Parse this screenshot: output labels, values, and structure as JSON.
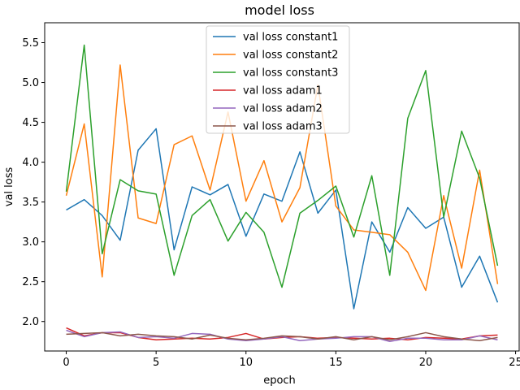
{
  "chart_data": {
    "type": "line",
    "title": "model loss",
    "xlabel": "epoch",
    "ylabel": "val loss",
    "xlim": [
      -1.2,
      25.2
    ],
    "ylim": [
      1.63,
      5.75
    ],
    "xticks": [
      0,
      5,
      10,
      15,
      20,
      25
    ],
    "yticks": [
      2.0,
      2.5,
      3.0,
      3.5,
      4.0,
      4.5,
      5.0,
      5.5
    ],
    "grid": false,
    "legend_position": "upper center",
    "x": [
      0,
      1,
      2,
      3,
      4,
      5,
      6,
      7,
      8,
      9,
      10,
      11,
      12,
      13,
      14,
      15,
      16,
      17,
      18,
      19,
      20,
      21,
      22,
      23,
      24
    ],
    "series": [
      {
        "name": "val loss constant1",
        "color": "#1f77b4",
        "values": [
          3.4,
          3.53,
          3.33,
          3.02,
          4.15,
          4.42,
          2.9,
          3.69,
          3.59,
          3.72,
          3.07,
          3.6,
          3.51,
          4.13,
          3.36,
          3.65,
          2.16,
          3.25,
          2.87,
          3.43,
          3.17,
          3.31,
          2.43,
          2.82,
          2.24
        ]
      },
      {
        "name": "val loss constant2",
        "color": "#ff7f0e",
        "values": [
          3.58,
          4.48,
          2.56,
          5.22,
          3.3,
          3.23,
          4.22,
          4.33,
          3.65,
          4.63,
          3.51,
          4.02,
          3.25,
          3.68,
          4.97,
          3.45,
          3.15,
          3.12,
          3.09,
          2.87,
          2.39,
          3.58,
          2.67,
          3.9,
          2.47
        ]
      },
      {
        "name": "val loss constant3",
        "color": "#2ca02c",
        "values": [
          3.63,
          5.47,
          2.85,
          3.78,
          3.64,
          3.6,
          2.58,
          3.33,
          3.53,
          3.01,
          3.37,
          3.12,
          2.43,
          3.36,
          3.52,
          3.7,
          3.06,
          3.83,
          2.58,
          4.55,
          5.15,
          3.31,
          4.39,
          3.8,
          2.7
        ]
      },
      {
        "name": "val loss adam1",
        "color": "#d62728",
        "values": [
          1.92,
          1.82,
          1.86,
          1.86,
          1.8,
          1.77,
          1.78,
          1.79,
          1.78,
          1.8,
          1.85,
          1.78,
          1.8,
          1.81,
          1.79,
          1.8,
          1.79,
          1.78,
          1.79,
          1.77,
          1.8,
          1.79,
          1.78,
          1.82,
          1.83
        ]
      },
      {
        "name": "val loss adam2",
        "color": "#9467bd",
        "values": [
          1.89,
          1.81,
          1.86,
          1.87,
          1.8,
          1.81,
          1.79,
          1.85,
          1.84,
          1.78,
          1.76,
          1.78,
          1.81,
          1.76,
          1.78,
          1.79,
          1.81,
          1.81,
          1.75,
          1.79,
          1.79,
          1.77,
          1.77,
          1.82,
          1.77
        ]
      },
      {
        "name": "val loss adam3",
        "color": "#8c564b",
        "values": [
          1.84,
          1.85,
          1.86,
          1.82,
          1.84,
          1.82,
          1.81,
          1.78,
          1.83,
          1.79,
          1.77,
          1.79,
          1.82,
          1.81,
          1.78,
          1.81,
          1.77,
          1.81,
          1.77,
          1.81,
          1.86,
          1.81,
          1.78,
          1.76,
          1.8
        ]
      }
    ]
  }
}
